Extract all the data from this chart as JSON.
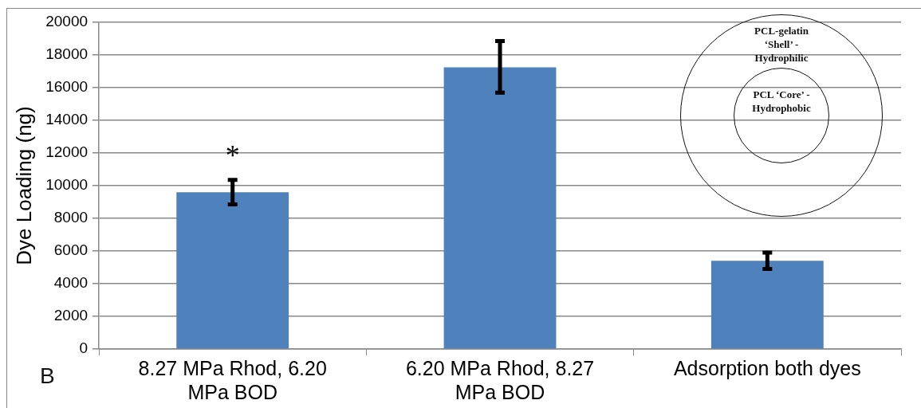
{
  "chart_data": {
    "type": "bar",
    "ylabel": "Dye Loading (ng)",
    "categories": [
      "8.27 MPa Rhod, 6.20 MPa BOD",
      "6.20 MPa Rhod, 8.27 MPa BOD",
      "Adsorption both dyes"
    ],
    "values": [
      9600,
      17250,
      5400
    ],
    "color": "#4f81bd",
    "errors": [
      [
        8850,
        10350
      ],
      [
        15700,
        18850
      ],
      [
        4900,
        5900
      ]
    ],
    "ylim": [
      0,
      20000
    ],
    "yticks": [
      0,
      2000,
      4000,
      6000,
      8000,
      10000,
      12000,
      14000,
      16000,
      18000,
      20000
    ],
    "grid": "y",
    "annotations": [
      "B",
      "PCL-gelatin ‘Shell’ - Hydrophilic",
      "PCL ‘Core’ - Hydrophobic",
      "*"
    ]
  }
}
